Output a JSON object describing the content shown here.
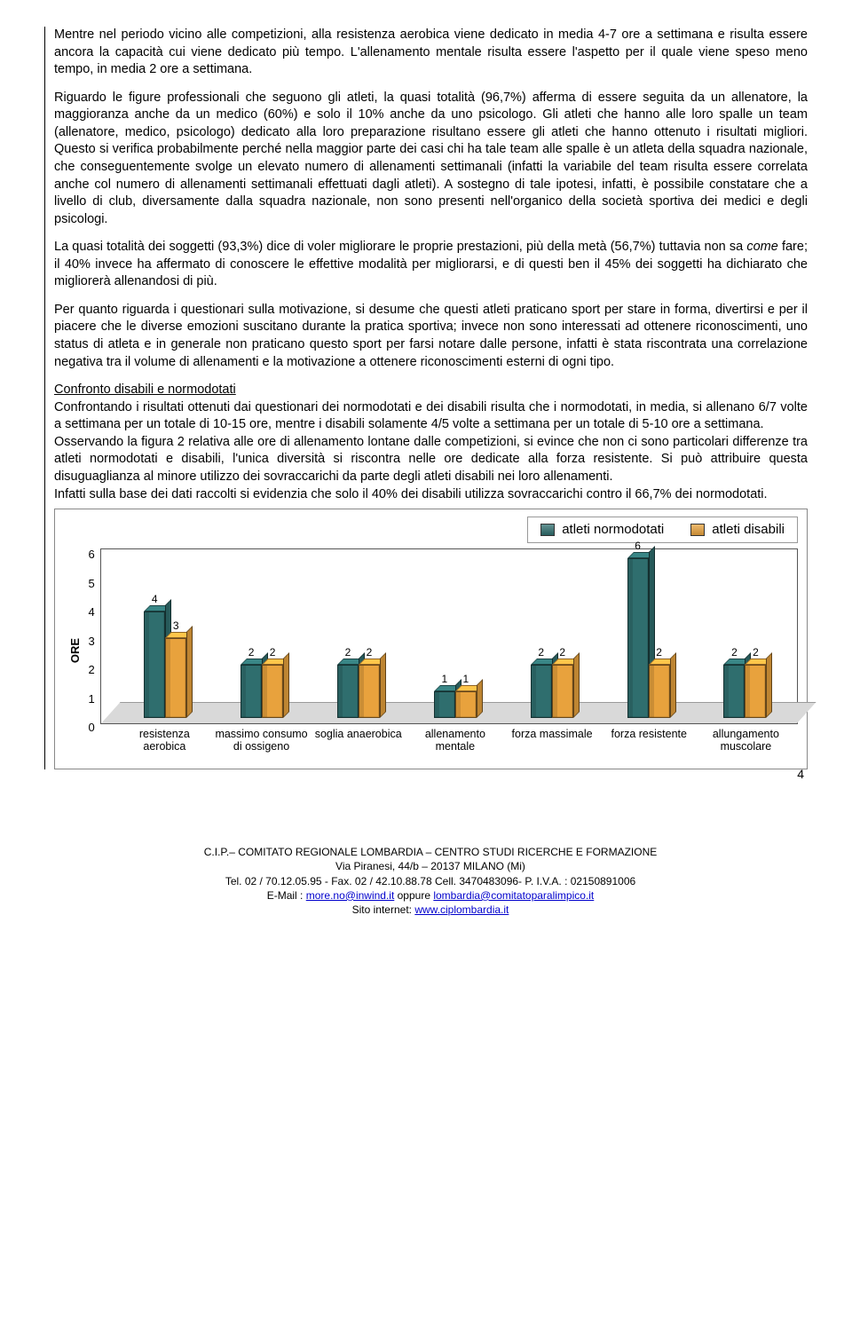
{
  "paragraphs": {
    "p1": "Mentre nel periodo vicino alle competizioni, alla resistenza aerobica viene dedicato in media 4-7 ore a settimana e risulta essere ancora la capacità cui viene dedicato più tempo. L'allenamento mentale risulta essere l'aspetto per il quale viene speso meno tempo, in media 2 ore a settimana.",
    "p2": "Riguardo le figure professionali che seguono gli atleti, la quasi totalità (96,7%) afferma di essere seguita da un allenatore, la maggioranza anche da un medico (60%) e solo il 10% anche da uno psicologo. Gli atleti che hanno alle loro spalle un team (allenatore, medico, psicologo) dedicato alla loro preparazione risultano essere gli atleti che hanno ottenuto i risultati migliori. Questo si verifica probabilmente perché nella maggior parte dei casi chi ha tale team alle spalle è un atleta della squadra nazionale, che conseguentemente svolge un elevato numero di allenamenti settimanali (infatti la variabile del team risulta essere correlata anche col numero di allenamenti settimanali effettuati dagli atleti). A sostegno di tale ipotesi, infatti, è possibile constatare che a livello di club, diversamente dalla squadra nazionale, non sono presenti nell'organico della società sportiva dei medici e degli psicologi.",
    "p3a": "La quasi totalità dei soggetti (93,3%) dice di voler migliorare le proprie prestazioni, più della metà (56,7%) tuttavia non sa ",
    "p3_italic": "come",
    "p3b": " fare; il 40% invece ha affermato di conoscere le effettive modalità per migliorarsi, e di questi ben il 45% dei soggetti ha dichiarato che migliorerà allenandosi di più.",
    "p4": "Per quanto riguarda i questionari sulla motivazione, si desume che questi atleti praticano sport per stare in forma, divertirsi e per il piacere che le diverse emozioni suscitano durante la pratica sportiva; invece non sono interessati ad ottenere riconoscimenti, uno status di atleta e in generale non praticano questo sport per farsi notare dalle persone, infatti è stata riscontrata una correlazione negativa tra il volume di allenamenti e la motivazione a ottenere riconoscimenti esterni di ogni tipo.",
    "section_title": "Confronto disabili e normodotati",
    "p5": "Confrontando i risultati ottenuti dai questionari dei normodotati e dei disabili risulta che i normodotati, in media, si allenano 6/7 volte a settimana per un totale di 10-15 ore, mentre i disabili solamente 4/5 volte a settimana per un totale di 5-10 ore a settimana.",
    "p6": "Osservando la figura 2 relativa alle ore di allenamento lontane dalle competizioni, si evince che non ci sono particolari differenze tra atleti normodotati e disabili, l'unica diversità si riscontra nelle ore dedicate alla forza resistente. Si può attribuire questa disuguaglianza al minore utilizzo dei sovraccarichi da parte degli atleti disabili nei loro allenamenti.",
    "p7": "Infatti sulla base dei dati raccolti si evidenzia che solo il 40% dei disabili utilizza sovraccarichi contro il 66,7% dei normodotati."
  },
  "chart": {
    "type": "bar",
    "legend": [
      {
        "label": "atleti normodotati",
        "color": "#2f6e6e"
      },
      {
        "label": "atleti disabili",
        "color": "#e8a23d"
      }
    ],
    "y_axis_label": "ORE",
    "y_ticks": [
      "6",
      "5",
      "4",
      "3",
      "2",
      "1",
      "0"
    ],
    "y_max": 6,
    "categories": [
      "resistenza aerobica",
      "massimo consumo di ossigeno",
      "soglia anaerobica",
      "allenamento mentale",
      "forza massimale",
      "forza resistente",
      "allungamento muscolare"
    ],
    "series": {
      "normodotati": [
        4,
        2,
        2,
        1,
        2,
        6,
        2
      ],
      "disabili": [
        3,
        2,
        2,
        1,
        2,
        2,
        2
      ]
    },
    "colors": {
      "normodotati": "#2f6e6e",
      "disabili": "#e8a23d"
    },
    "floor_color": "#d9d9d9",
    "background": "#ffffff"
  },
  "footer": {
    "line1": "C.I.P.– COMITATO  REGIONALE  LOMBARDIA – CENTRO STUDI RICERCHE E FORMAZIONE",
    "line2": "Via  Piranesi, 44/b – 20137 MILANO (Mi)",
    "line3": "Tel.  02 / 70.12.05.95 -  Fax.  02 / 42.10.88.78  Cell.  3470483096-  P. I.V.A. : 02150891006",
    "email_prefix": "E-Mail : ",
    "email1": "more.no@inwind.it",
    "email_mid": " oppure ",
    "email2": "lombardia@comitatoparalimpico.it",
    "site_prefix": "Sito internet: ",
    "site": "www.ciplombardia.it"
  },
  "page_number": "4"
}
